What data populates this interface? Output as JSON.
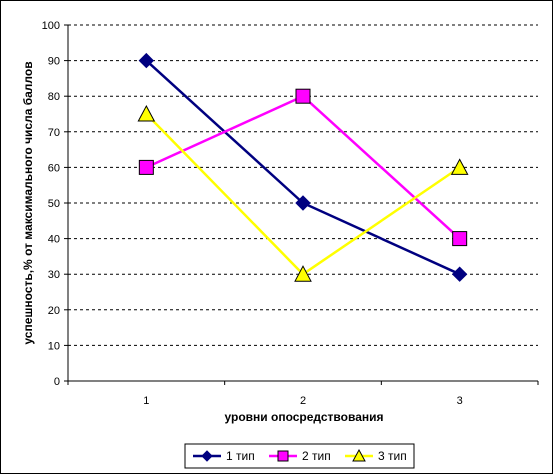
{
  "chart_data": {
    "type": "line",
    "title": "",
    "xlabel": "уровни опосредствования",
    "ylabel": "успешность,% от максимального числа баллов",
    "categories": [
      "1",
      "2",
      "3"
    ],
    "ylim": [
      0,
      100
    ],
    "yticks": [
      0,
      10,
      20,
      30,
      40,
      50,
      60,
      70,
      80,
      90,
      100
    ],
    "grid": "horizontal dashed",
    "legend_position": "bottom",
    "series": [
      {
        "name": "1 тип",
        "values": [
          90,
          50,
          30
        ],
        "color": "#000080",
        "marker": "diamond"
      },
      {
        "name": "2 тип",
        "values": [
          60,
          80,
          40
        ],
        "color": "#ff00ff",
        "marker": "square"
      },
      {
        "name": "3 тип",
        "values": [
          75,
          30,
          60
        ],
        "color": "#ffff00",
        "marker": "triangle"
      }
    ]
  }
}
